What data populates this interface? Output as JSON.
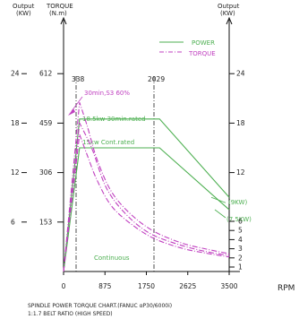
{
  "chart_data": {
    "type": "line",
    "title": "SPINDLE POWER TORQUE CHART.(FANUC αP30/6000i)",
    "subtitle": "1:1.7 BELT RATIO (HIGH SPEED)",
    "xlabel": "RPM",
    "x_ticks": [
      "0",
      "875",
      "1750",
      "2625",
      "3500"
    ],
    "xlim": [
      0,
      3500
    ],
    "left_axis_1": {
      "label_line1": "Output",
      "label_line2": "(KW)",
      "ticks": [
        "6",
        "12",
        "18",
        "24"
      ],
      "range": [
        0,
        30
      ]
    },
    "left_axis_2": {
      "label_line1": "TORQUE",
      "label_line2": "(N.m)",
      "ticks": [
        "153",
        "306",
        "459",
        "612"
      ],
      "range": [
        0,
        765
      ]
    },
    "right_axis": {
      "label_line1": "Output",
      "label_line2": "(KW)",
      "ticks": [
        "1",
        "2",
        "3",
        "4",
        "5",
        "6",
        "12",
        "18",
        "24"
      ],
      "tick_values": [
        1,
        2,
        3,
        4,
        5,
        6,
        12,
        18,
        24
      ]
    },
    "vertical_markers": [
      {
        "x": 338,
        "label": "338"
      },
      {
        "x": 2029,
        "label": "2029"
      }
    ],
    "legend": [
      {
        "name": "POWER",
        "color": "#4caf50"
      },
      {
        "name": "TORQUE",
        "color": "#c040c0"
      }
    ],
    "annotations": {
      "s3": "30min,S3  60%",
      "rated30": "18.5kw 30min.rated",
      "cont": "15kw    Cont.rated",
      "kw9": "(9KW)",
      "kw75": "(7.5KW)",
      "continuous": "Continuous"
    },
    "series": [
      {
        "name": "POWER",
        "axis": "kw",
        "style": "solid",
        "x": [
          0,
          338,
          2029,
          3500
        ],
        "y": [
          0,
          18.5,
          18.5,
          9
        ]
      },
      {
        "name": "POWER",
        "axis": "kw",
        "style": "solid",
        "x": [
          0,
          338,
          2029,
          3500
        ],
        "y": [
          0,
          15,
          15,
          7.5
        ]
      },
      {
        "name": "TORQUE",
        "axis": "nm",
        "style": "dashdot",
        "x": [
          0,
          338,
          500,
          700,
          1000,
          1400,
          1900,
          2500,
          3000,
          3500
        ],
        "y": [
          0,
          523,
          450,
          350,
          250,
          180,
          125,
          88,
          70,
          55
        ]
      },
      {
        "name": "TORQUE",
        "axis": "nm",
        "style": "dashdot",
        "x": [
          0,
          338,
          500,
          700,
          1000,
          1400,
          1900,
          2500,
          3000,
          3500
        ],
        "y": [
          0,
          424,
          360,
          285,
          205,
          150,
          103,
          72,
          57,
          45
        ]
      },
      {
        "name": "TORQUE",
        "axis": "nm",
        "style": "dashdot",
        "x": [
          0,
          338,
          600,
          900,
          1300,
          1800,
          2400,
          3000,
          3500
        ],
        "y": [
          0,
          459,
          380,
          260,
          180,
          120,
          85,
          62,
          50
        ]
      }
    ],
    "grid": false
  }
}
